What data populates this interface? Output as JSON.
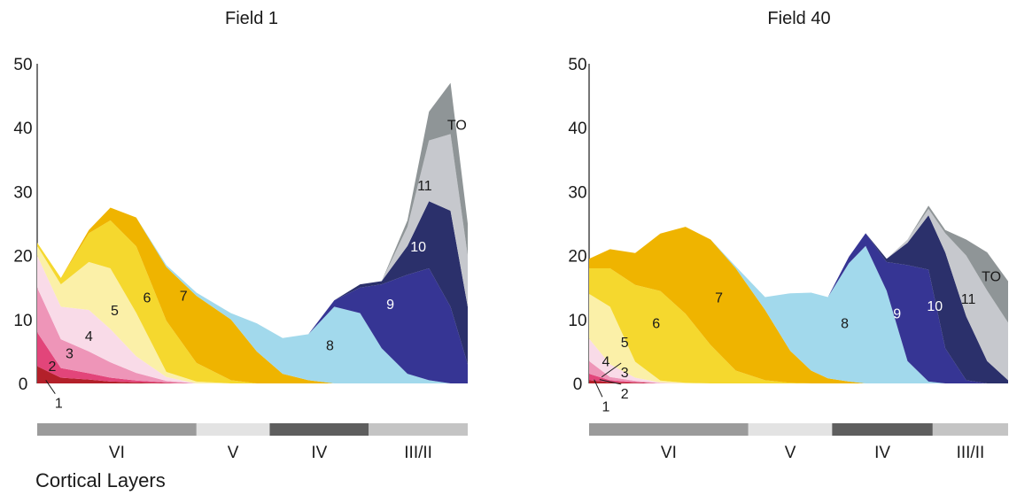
{
  "xlabel": "Cortical Layers",
  "colors": {
    "1": "#b3202a",
    "2": "#e2457a",
    "3": "#ee95b8",
    "4": "#f9dbe8",
    "5": "#fbf0a8",
    "6": "#f5d82e",
    "7": "#efb400",
    "8": "#a2d9ec",
    "9": "#363594",
    "10": "#2b306b",
    "11": "#c6c8cd",
    "TO": "#8f9597"
  },
  "chart_data": [
    {
      "type": "area",
      "title": "Field 1",
      "ylim": [
        0,
        50
      ],
      "yticks": [
        0,
        10,
        20,
        30,
        40,
        50
      ],
      "x": [
        0,
        0.055,
        0.12,
        0.17,
        0.23,
        0.3,
        0.37,
        0.45,
        0.51,
        0.57,
        0.63,
        0.69,
        0.75,
        0.8,
        0.86,
        0.91,
        0.96,
        1.0
      ],
      "layer_bands": [
        {
          "label": "VI",
          "start": 0,
          "end": 0.37,
          "color": "#9b9b9b"
        },
        {
          "label": "V",
          "start": 0.37,
          "end": 0.54,
          "color": "#e3e3e3"
        },
        {
          "label": "IV",
          "start": 0.54,
          "end": 0.77,
          "color": "#5e5e5e"
        },
        {
          "label": "III/II",
          "start": 0.77,
          "end": 1.0,
          "color": "#c4c4c4"
        }
      ],
      "series": [
        {
          "name": "1",
          "values": [
            2.7,
            0.9,
            0.6,
            0.3,
            0.15,
            0.05,
            0,
            0,
            0,
            0,
            0,
            0,
            0,
            0,
            0,
            0,
            0,
            0
          ]
        },
        {
          "name": "2",
          "values": [
            5.3,
            1.5,
            1.0,
            0.6,
            0.3,
            0.1,
            0,
            0,
            0,
            0,
            0,
            0,
            0,
            0,
            0,
            0,
            0,
            0
          ]
        },
        {
          "name": "3",
          "values": [
            7.0,
            4.5,
            3.4,
            2.4,
            1.2,
            0.25,
            0,
            0,
            0,
            0,
            0,
            0,
            0,
            0,
            0,
            0,
            0,
            0
          ]
        },
        {
          "name": "4",
          "values": [
            5.0,
            5.1,
            6.5,
            5.2,
            2.6,
            0.6,
            0,
            0,
            0,
            0,
            0,
            0,
            0,
            0,
            0,
            0,
            0,
            0
          ]
        },
        {
          "name": "5",
          "values": [
            1.5,
            3.5,
            7.5,
            9.5,
            6.8,
            0.8,
            0.3,
            0,
            0,
            0,
            0,
            0,
            0,
            0,
            0,
            0,
            0,
            0
          ]
        },
        {
          "name": "6",
          "values": [
            0.5,
            1.0,
            4.5,
            7.5,
            10.4,
            8.0,
            2.9,
            0.5,
            0,
            0,
            0,
            0,
            0,
            0,
            0,
            0,
            0,
            0
          ]
        },
        {
          "name": "7",
          "values": [
            0,
            0,
            0.5,
            2.0,
            4.5,
            8.4,
            10.5,
            9.5,
            5.0,
            1.5,
            0.5,
            0,
            0,
            0,
            0,
            0,
            0,
            0
          ]
        },
        {
          "name": "8",
          "values": [
            0,
            0,
            0,
            0,
            0,
            0.3,
            0.5,
            1.0,
            4.4,
            5.6,
            7.2,
            12.0,
            11.0,
            5.5,
            1.5,
            0.5,
            0,
            0
          ]
        },
        {
          "name": "9",
          "values": [
            0,
            0,
            0,
            0,
            0,
            0,
            0,
            0,
            0,
            0,
            0,
            1.0,
            4.0,
            10.0,
            15.5,
            17.5,
            12.0,
            3.0
          ]
        },
        {
          "name": "10",
          "values": [
            0,
            0,
            0,
            0,
            0,
            0,
            0,
            0,
            0,
            0,
            0,
            0,
            0.5,
            0.5,
            4.5,
            10.5,
            15.0,
            9.0
          ]
        },
        {
          "name": "11",
          "values": [
            0,
            0,
            0,
            0,
            0,
            0,
            0,
            0,
            0,
            0,
            0,
            0,
            0,
            0,
            3.0,
            9.5,
            12.0,
            8.0
          ]
        },
        {
          "name": "TO",
          "values": [
            0,
            0,
            0,
            0,
            0,
            0,
            0,
            0,
            0,
            0,
            0,
            0,
            0,
            0,
            1.0,
            4.5,
            8.0,
            5.0
          ]
        }
      ],
      "labels": [
        {
          "text": "1",
          "series": "1",
          "x": 0.05,
          "y": -3.0,
          "leader": [
            0.02,
            0.5
          ]
        },
        {
          "text": "2",
          "series": "2",
          "x": 0.035,
          "y": 2.8
        },
        {
          "text": "3",
          "series": "3",
          "x": 0.075,
          "y": 4.8
        },
        {
          "text": "4",
          "series": "4",
          "x": 0.12,
          "y": 7.5
        },
        {
          "text": "5",
          "series": "5",
          "x": 0.18,
          "y": 11.5
        },
        {
          "text": "6",
          "series": "6",
          "x": 0.255,
          "y": 13.5
        },
        {
          "text": "7",
          "series": "7",
          "x": 0.34,
          "y": 13.8
        },
        {
          "text": "8",
          "series": "8",
          "x": 0.68,
          "y": 6.0
        },
        {
          "text": "9",
          "series": "9",
          "x": 0.82,
          "y": 12.5
        },
        {
          "text": "10",
          "series": "10",
          "x": 0.885,
          "y": 21.5
        },
        {
          "text": "11",
          "series": "11",
          "x": 0.9,
          "y": 31.0
        },
        {
          "text": "TO",
          "series": "TO",
          "x": 0.975,
          "y": 40.5
        }
      ]
    },
    {
      "type": "area",
      "title": "Field 40",
      "ylim": [
        0,
        50
      ],
      "yticks": [
        0,
        10,
        20,
        30,
        40,
        50
      ],
      "x": [
        0,
        0.05,
        0.11,
        0.17,
        0.23,
        0.29,
        0.35,
        0.42,
        0.48,
        0.53,
        0.57,
        0.62,
        0.66,
        0.71,
        0.76,
        0.81,
        0.85,
        0.9,
        0.95,
        1.0
      ],
      "layer_bands": [
        {
          "label": "VI",
          "start": 0,
          "end": 0.38,
          "color": "#9b9b9b"
        },
        {
          "label": "V",
          "start": 0.38,
          "end": 0.58,
          "color": "#e3e3e3"
        },
        {
          "label": "IV",
          "start": 0.58,
          "end": 0.82,
          "color": "#5e5e5e"
        },
        {
          "label": "III/II",
          "start": 0.82,
          "end": 1.0,
          "color": "#c4c4c4"
        }
      ],
      "series": [
        {
          "name": "1",
          "values": [
            0.5,
            0.2,
            0.1,
            0,
            0,
            0,
            0,
            0,
            0,
            0,
            0,
            0,
            0,
            0,
            0,
            0,
            0,
            0,
            0,
            0
          ]
        },
        {
          "name": "2",
          "values": [
            1.0,
            0.3,
            0.1,
            0,
            0,
            0,
            0,
            0,
            0,
            0,
            0,
            0,
            0,
            0,
            0,
            0,
            0,
            0,
            0,
            0
          ]
        },
        {
          "name": "3",
          "values": [
            2.0,
            0.5,
            0.2,
            0.05,
            0,
            0,
            0,
            0,
            0,
            0,
            0,
            0,
            0,
            0,
            0,
            0,
            0,
            0,
            0,
            0
          ]
        },
        {
          "name": "4",
          "values": [
            3.5,
            2.0,
            0.5,
            0.1,
            0,
            0,
            0,
            0,
            0,
            0,
            0,
            0,
            0,
            0,
            0,
            0,
            0,
            0,
            0,
            0
          ]
        },
        {
          "name": "5",
          "values": [
            7.0,
            9.0,
            2.5,
            0.3,
            0.1,
            0,
            0,
            0,
            0,
            0,
            0,
            0,
            0,
            0,
            0,
            0,
            0,
            0,
            0,
            0
          ]
        },
        {
          "name": "6",
          "values": [
            4.0,
            6.0,
            12.0,
            14.0,
            10.8,
            6.0,
            2.0,
            0.5,
            0.1,
            0,
            0,
            0,
            0,
            0,
            0,
            0,
            0,
            0,
            0,
            0
          ]
        },
        {
          "name": "7",
          "values": [
            1.5,
            3.0,
            5.0,
            9.0,
            13.6,
            16.5,
            16.0,
            11.0,
            5.0,
            2.0,
            0.8,
            0.3,
            0,
            0,
            0,
            0,
            0,
            0,
            0,
            0
          ]
        },
        {
          "name": "8",
          "values": [
            0,
            0,
            0,
            0,
            0,
            0,
            0.3,
            2.0,
            9.0,
            12.2,
            12.7,
            18.5,
            21.5,
            14.5,
            3.5,
            0.3,
            0,
            0,
            0,
            0
          ]
        },
        {
          "name": "9",
          "values": [
            0,
            0,
            0,
            0,
            0,
            0,
            0,
            0,
            0,
            0,
            0,
            1.0,
            2.0,
            4.5,
            15.0,
            17.5,
            5.5,
            0.5,
            0,
            0
          ]
        },
        {
          "name": "10",
          "values": [
            0,
            0,
            0,
            0,
            0,
            0,
            0,
            0,
            0,
            0,
            0,
            0,
            0,
            0.5,
            3.5,
            8.5,
            15.0,
            10.0,
            3.5,
            0.5
          ]
        },
        {
          "name": "11",
          "values": [
            0,
            0,
            0,
            0,
            0,
            0,
            0,
            0,
            0,
            0,
            0,
            0,
            0,
            0,
            0.5,
            1.0,
            3.0,
            9.5,
            11.0,
            9.0
          ]
        },
        {
          "name": "TO",
          "values": [
            0,
            0,
            0,
            0,
            0,
            0,
            0,
            0,
            0,
            0,
            0,
            0,
            0,
            0,
            0,
            0.5,
            0.5,
            2.5,
            6.0,
            6.5
          ]
        }
      ],
      "labels": [
        {
          "text": "1",
          "series": "1",
          "x": 0.04,
          "y": -3.5,
          "leader": [
            0.012,
            0.6
          ]
        },
        {
          "text": "2",
          "series": "2",
          "x": 0.085,
          "y": -1.5,
          "leader": [
            0.025,
            0.6
          ]
        },
        {
          "text": "3",
          "series": "3",
          "x": 0.085,
          "y": 1.8,
          "leader": [
            0.03,
            1.0
          ]
        },
        {
          "text": "4",
          "series": "4",
          "x": 0.04,
          "y": 3.5
        },
        {
          "text": "5",
          "series": "5",
          "x": 0.085,
          "y": 6.5
        },
        {
          "text": "6",
          "series": "6",
          "x": 0.16,
          "y": 9.5
        },
        {
          "text": "7",
          "series": "7",
          "x": 0.31,
          "y": 13.5
        },
        {
          "text": "8",
          "series": "8",
          "x": 0.61,
          "y": 9.5
        },
        {
          "text": "9",
          "series": "9",
          "x": 0.735,
          "y": 11.0
        },
        {
          "text": "10",
          "series": "10",
          "x": 0.825,
          "y": 12.2
        },
        {
          "text": "11",
          "series": "11",
          "x": 0.905,
          "y": 13.3
        },
        {
          "text": "TO",
          "series": "TO",
          "x": 0.96,
          "y": 16.8
        }
      ]
    }
  ]
}
